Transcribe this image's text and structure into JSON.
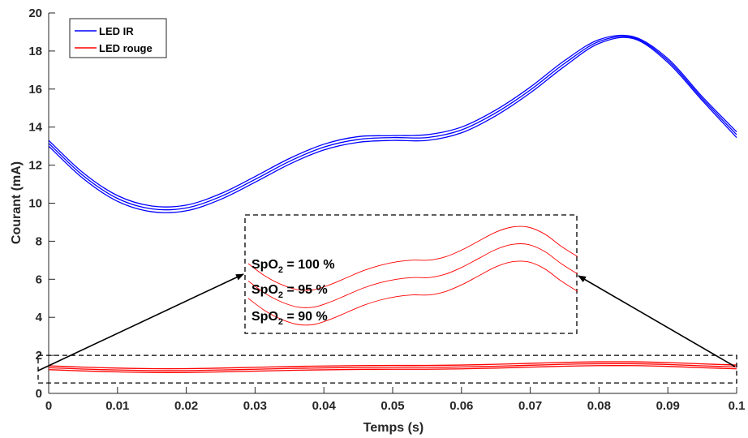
{
  "chart_data": {
    "type": "line",
    "xlabel": "Temps (s)",
    "ylabel": "Courant (mA)",
    "xlim": [
      0,
      0.1
    ],
    "ylim": [
      0,
      20
    ],
    "x_ticks": [
      "0",
      "0.01",
      "0.02",
      "0.03",
      "0.04",
      "0.05",
      "0.06",
      "0.07",
      "0.08",
      "0.09",
      "0.1"
    ],
    "y_ticks": [
      "0",
      "2",
      "4",
      "6",
      "8",
      "10",
      "12",
      "14",
      "16",
      "18",
      "20"
    ],
    "grid": false,
    "legend_position": "top-left",
    "legend": [
      {
        "label": "LED IR",
        "color": "#0000ff"
      },
      {
        "label": "LED rouge",
        "color": "#ff0000"
      }
    ],
    "x": [
      0,
      0.005,
      0.01,
      0.015,
      0.02,
      0.025,
      0.03,
      0.035,
      0.04,
      0.045,
      0.05,
      0.055,
      0.06,
      0.065,
      0.07,
      0.075,
      0.08,
      0.085,
      0.09,
      0.095,
      0.1
    ],
    "series": [
      {
        "group": "LED IR",
        "color": "#0000ff",
        "values": [
          13.3,
          11.6,
          10.4,
          9.85,
          9.9,
          10.5,
          11.4,
          12.35,
          13.1,
          13.5,
          13.55,
          13.6,
          14.0,
          14.9,
          16.1,
          17.5,
          18.6,
          18.75,
          17.6,
          15.6,
          13.75
        ]
      },
      {
        "group": "LED IR",
        "color": "#0000ff",
        "values": [
          13.15,
          11.45,
          10.25,
          9.7,
          9.75,
          10.35,
          11.25,
          12.2,
          12.95,
          13.35,
          13.45,
          13.45,
          13.85,
          14.75,
          15.95,
          17.35,
          18.5,
          18.7,
          17.5,
          15.5,
          13.6
        ]
      },
      {
        "group": "LED IR",
        "color": "#0000ff",
        "values": [
          13.0,
          11.3,
          10.1,
          9.55,
          9.6,
          10.2,
          11.1,
          12.05,
          12.8,
          13.2,
          13.3,
          13.3,
          13.7,
          14.6,
          15.8,
          17.2,
          18.4,
          18.65,
          17.4,
          15.4,
          13.45
        ]
      },
      {
        "group": "LED rouge",
        "color": "#ff0000",
        "values": [
          1.45,
          1.38,
          1.33,
          1.3,
          1.3,
          1.33,
          1.37,
          1.41,
          1.44,
          1.46,
          1.47,
          1.47,
          1.49,
          1.53,
          1.58,
          1.63,
          1.66,
          1.66,
          1.62,
          1.55,
          1.49
        ]
      },
      {
        "group": "LED rouge",
        "color": "#ff0000",
        "values": [
          1.35,
          1.28,
          1.23,
          1.2,
          1.2,
          1.23,
          1.27,
          1.31,
          1.34,
          1.36,
          1.37,
          1.37,
          1.39,
          1.43,
          1.48,
          1.53,
          1.56,
          1.56,
          1.52,
          1.45,
          1.39
        ]
      },
      {
        "group": "LED rouge",
        "color": "#ff0000",
        "values": [
          1.25,
          1.18,
          1.13,
          1.1,
          1.1,
          1.13,
          1.17,
          1.21,
          1.24,
          1.26,
          1.27,
          1.27,
          1.29,
          1.33,
          1.38,
          1.43,
          1.46,
          1.46,
          1.42,
          1.35,
          1.29
        ]
      }
    ],
    "annotations": [
      {
        "text": "SpO",
        "sub": "2",
        "after": " = 100 %"
      },
      {
        "text": "SpO",
        "sub": "2",
        "after": " = 95 %"
      },
      {
        "text": "SpO",
        "sub": "2",
        "after": " = 90 %"
      }
    ]
  }
}
